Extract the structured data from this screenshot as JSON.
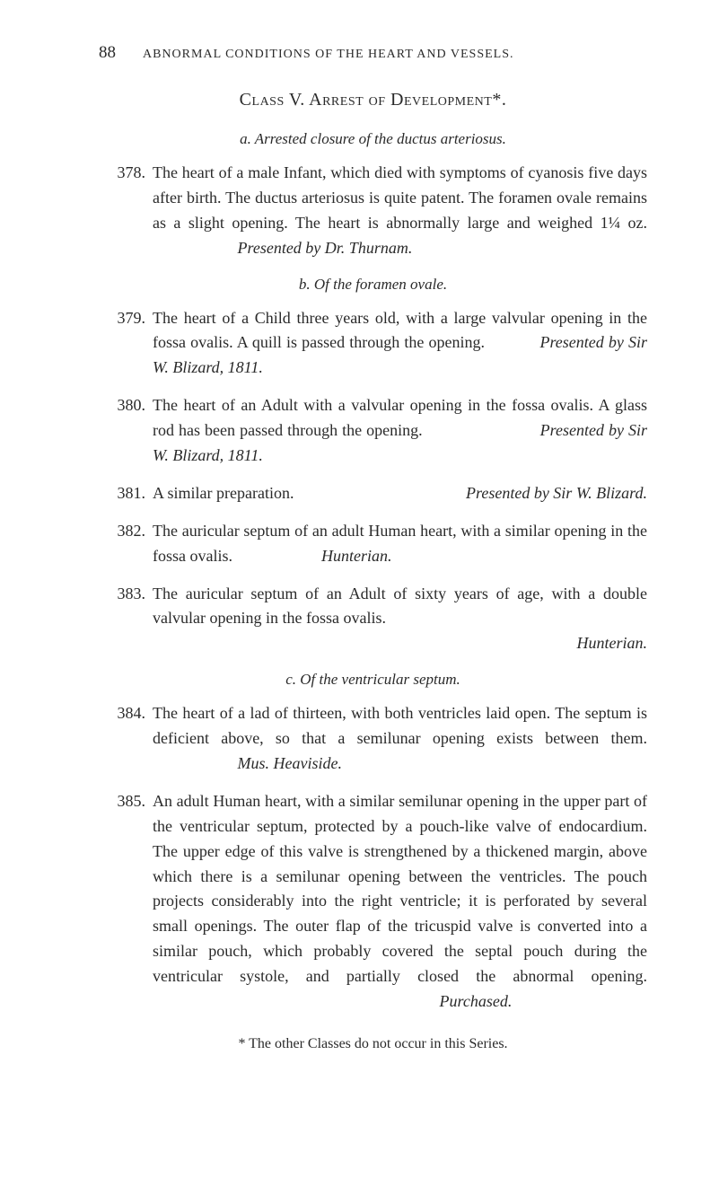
{
  "page_number": "88",
  "running_title": "ABNORMAL CONDITIONS OF THE HEART AND VESSELS.",
  "class_heading": "Class V.  Arrest of Development*.",
  "section_a": {
    "heading": "a.  Arrested closure of the ductus arteriosus."
  },
  "entries": {
    "378": {
      "num": "378.",
      "text": "The heart of a male Infant, which died with symptoms of cyanosis five days after birth.  The ductus arteriosus is quite patent.  The foramen ovale remains as a slight opening.  The heart is abnormally large and weighed 1¼ oz.",
      "presenter": "Presented by Dr. Thurnam."
    },
    "379": {
      "num": "379.",
      "text": "The heart of a Child three years old, with a large valvular opening in the fossa ovalis.  A quill is passed through the opening.",
      "presenter": "Presented by Sir W. Blizard, 1811."
    },
    "380": {
      "num": "380.",
      "text": "The heart of an Adult with a valvular opening in the fossa ovalis.  A glass rod has been passed through the opening.",
      "presenter": "Presented by Sir W. Blizard, 1811."
    },
    "381": {
      "num": "381.",
      "text": "A similar preparation.",
      "presenter": "Presented by Sir W. Blizard."
    },
    "382": {
      "num": "382.",
      "text": "The auricular septum of an adult Human heart, with a similar opening in the fossa ovalis.",
      "presenter": "Hunterian."
    },
    "383": {
      "num": "383.",
      "text": "The auricular septum of an Adult of sixty years of age, with a double valvular opening in the fossa ovalis.",
      "presenter": "Hunterian."
    },
    "384": {
      "num": "384.",
      "text": "The heart of a lad of thirteen, with both ventricles laid open.  The septum is deficient above, so that a semilunar opening exists between them.",
      "presenter": "Mus. Heaviside."
    },
    "385": {
      "num": "385.",
      "text": "An adult Human heart, with a similar semilunar opening in the upper part of the ventricular septum, protected by a pouch-like valve of endocardium.  The upper edge of this valve is strengthened by a thickened margin, above which there is a semilunar opening between the ventricles. The pouch projects considerably into the right ventricle; it is perforated by several small openings.  The outer flap of the tricuspid valve is converted into a similar pouch, which probably covered the septal pouch during the ventricular systole, and partially closed the abnormal opening.",
      "presenter": "Purchased."
    }
  },
  "section_b": {
    "heading": "b.  Of the foramen ovale."
  },
  "section_c": {
    "heading": "c.  Of the ventricular septum."
  },
  "footnote": "* The other Classes do not occur in this Series."
}
